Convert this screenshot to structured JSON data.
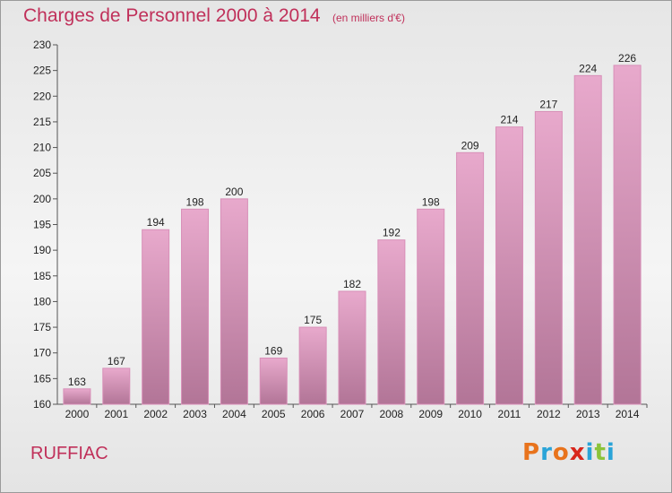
{
  "header": {
    "title": "Charges de Personnel 2000 à 2014",
    "subtitle": "(en milliers d'€)"
  },
  "footer": {
    "commune": "RUFFIAC",
    "logo_text": "Proxiti",
    "logo_colors": [
      "#e8731c",
      "#2aa4d8",
      "#e8731c",
      "#d8261c",
      "#2aa4d8",
      "#8bc33a",
      "#2aa4d8"
    ]
  },
  "colors": {
    "bar_top": "#e8a9cc",
    "bar_bottom": "#b27597",
    "bar_edge": "#d88fb8",
    "text_accent": "#c0305a"
  },
  "chart_data": {
    "type": "bar",
    "title": "Charges de Personnel 2000 à 2014",
    "subtitle": "(en milliers d'€)",
    "categories": [
      "2000",
      "2001",
      "2002",
      "2003",
      "2004",
      "2005",
      "2006",
      "2007",
      "2008",
      "2009",
      "2010",
      "2011",
      "2012",
      "2013",
      "2014"
    ],
    "values": [
      163,
      167,
      194,
      198,
      200,
      169,
      175,
      182,
      192,
      198,
      209,
      214,
      217,
      224,
      226
    ],
    "ylim": [
      160,
      230
    ],
    "yticks": [
      160,
      165,
      170,
      175,
      180,
      185,
      190,
      195,
      200,
      205,
      210,
      215,
      220,
      225,
      230
    ],
    "grid": false,
    "legend": "none",
    "data_labels": true
  }
}
